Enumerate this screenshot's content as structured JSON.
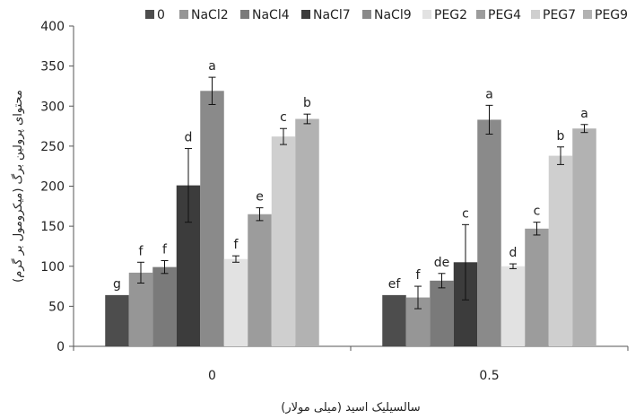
{
  "chart_data": {
    "type": "bar",
    "categories": [
      "0",
      "0.5"
    ],
    "series": [
      {
        "name": "0",
        "color": "#4d4d4d",
        "values": [
          64,
          64
        ],
        "errors": [
          0,
          0
        ],
        "labels": [
          "g",
          "ef"
        ]
      },
      {
        "name": "NaCl2",
        "color": "#969696",
        "values": [
          92,
          61
        ],
        "errors": [
          13,
          14
        ],
        "labels": [
          "f",
          "f"
        ]
      },
      {
        "name": "NaCl4",
        "color": "#7a7a7a",
        "values": [
          99,
          82
        ],
        "errors": [
          8,
          9
        ],
        "labels": [
          "f",
          "de"
        ]
      },
      {
        "name": "NaCl7",
        "color": "#3c3c3c",
        "values": [
          201,
          105
        ],
        "errors": [
          46,
          47
        ],
        "labels": [
          "d",
          "c"
        ]
      },
      {
        "name": "NaCl9",
        "color": "#8a8a8a",
        "values": [
          319,
          283
        ],
        "errors": [
          17,
          18
        ],
        "labels": [
          "a",
          "a"
        ]
      },
      {
        "name": "PEG2",
        "color": "#e2e2e2",
        "values": [
          109,
          100
        ],
        "errors": [
          4,
          3
        ],
        "labels": [
          "f",
          "d"
        ]
      },
      {
        "name": "PEG4",
        "color": "#9c9c9c",
        "values": [
          165,
          147
        ],
        "errors": [
          8,
          8
        ],
        "labels": [
          "e",
          "c"
        ]
      },
      {
        "name": "PEG7",
        "color": "#cfcfcf",
        "values": [
          262,
          238
        ],
        "errors": [
          10,
          11
        ],
        "labels": [
          "c",
          "b"
        ]
      },
      {
        "name": "PEG9",
        "color": "#b2b2b2",
        "values": [
          284,
          272
        ],
        "errors": [
          6,
          5
        ],
        "labels": [
          "b",
          "a"
        ]
      }
    ],
    "ylim": [
      0,
      400
    ],
    "yticks": [
      0,
      50,
      100,
      150,
      200,
      250,
      300,
      350,
      400
    ],
    "xlabel": "سالسیلیک اسید (میلی مولار)",
    "ylabel": "محتوای پرولین برگ (میکرومول بر گرم)",
    "legend_position": "top",
    "grid": false
  }
}
